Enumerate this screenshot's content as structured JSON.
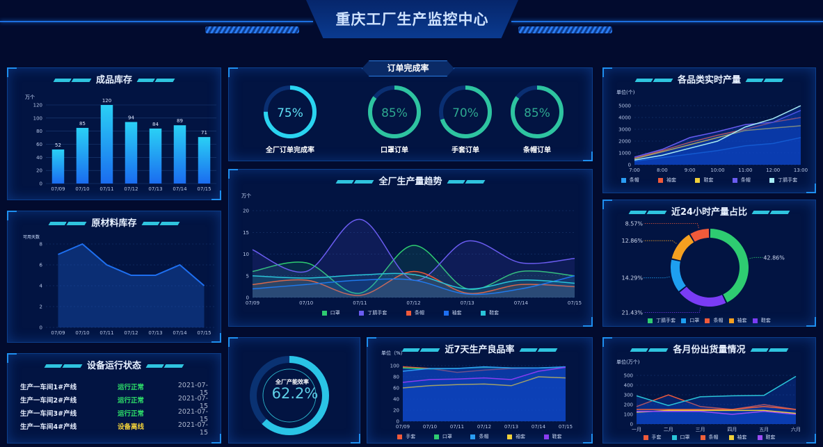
{
  "header": {
    "title": "重庆工厂生产监控中心"
  },
  "colors": {
    "accent": "#34d8f0",
    "ok": "#2ee06a",
    "warn": "#f0d03a",
    "bar": "#1e8ff0"
  },
  "finished_inventory": {
    "title": "成品库存",
    "unit": "万个",
    "chart_data": {
      "type": "bar",
      "categories": [
        "07/09",
        "07/10",
        "07/11",
        "07/12",
        "07/13",
        "07/14",
        "07/15"
      ],
      "values": [
        52,
        85,
        120,
        94,
        84,
        89,
        71
      ],
      "ylim": [
        0,
        120
      ],
      "yticks": [
        "0",
        "20",
        "40",
        "60",
        "80",
        "100",
        "120"
      ],
      "ylabel": "万个"
    }
  },
  "raw_inventory": {
    "title": "原材料库存",
    "unit": "可用天数",
    "chart_data": {
      "type": "area",
      "categories": [
        "07/09",
        "07/10",
        "07/11",
        "07/12",
        "07/13",
        "07/14",
        "07/15"
      ],
      "series": [
        {
          "values": [
            7,
            8,
            6,
            5,
            5,
            6,
            4
          ],
          "color": "#1e6ff0"
        }
      ],
      "ylim": [
        0,
        8
      ],
      "yticks": [
        "0",
        "2",
        "4",
        "6",
        "8"
      ],
      "ylabel": "可用天数"
    }
  },
  "equipment": {
    "title": "设备运行状态",
    "rows": [
      {
        "name": "生产一车间1#产线",
        "status": "运行正常",
        "state": "ok",
        "date": "2021-07-15"
      },
      {
        "name": "生产一车间2#产线",
        "status": "运行正常",
        "state": "ok",
        "date": "2021-07-15"
      },
      {
        "name": "生产一车间3#产线",
        "status": "运行正常",
        "state": "ok",
        "date": "2021-07-15"
      },
      {
        "name": "生产一车间4#产线",
        "status": "设备离线",
        "state": "warn",
        "date": "2021-07-15"
      }
    ]
  },
  "orders": {
    "title": "订单完成率",
    "gauges": [
      {
        "label": "全厂订单完成率",
        "value": 75,
        "text": "75%",
        "color": "#2ad4f0"
      },
      {
        "label": "口罩订单",
        "value": 85,
        "text": "85%",
        "color": "#2ec4a0"
      },
      {
        "label": "手套订单",
        "value": 70,
        "text": "70%",
        "color": "#2ec4a0"
      },
      {
        "label": "条帽订单",
        "value": 85,
        "text": "85%",
        "color": "#2ec4a0"
      }
    ]
  },
  "trend": {
    "title": "全厂生产量趋势",
    "unit": "万个",
    "chart_data": {
      "type": "line",
      "smooth": true,
      "categories": [
        "07/09",
        "07/10",
        "07/11",
        "07/12",
        "07/13",
        "07/14",
        "07/15"
      ],
      "ylim": [
        0,
        20
      ],
      "yticks": [
        "0",
        "5",
        "10",
        "15",
        "20"
      ],
      "ylabel": "万个",
      "legend": "bottom",
      "series": [
        {
          "name": "口罩",
          "color": "#2ecc71",
          "values": [
            6,
            8,
            1,
            12,
            2,
            6,
            5
          ]
        },
        {
          "name": "丁腈手套",
          "color": "#6a5cf0",
          "values": [
            11,
            6,
            18,
            4,
            13,
            8,
            9
          ]
        },
        {
          "name": "条帽",
          "color": "#f05a3a",
          "values": [
            3,
            4,
            0.5,
            6,
            1,
            3,
            2.5
          ]
        },
        {
          "name": "袖套",
          "color": "#1e6ff0",
          "values": [
            2,
            3,
            4,
            4,
            0.8,
            2,
            5
          ]
        },
        {
          "name": "鞋套",
          "color": "#2ac4d8",
          "values": [
            5,
            4.5,
            5.2,
            5.3,
            2,
            4,
            3.3
          ]
        }
      ]
    }
  },
  "efficiency": {
    "label": "全厂产能效率",
    "value": 62.2,
    "text": "62.2%"
  },
  "quality": {
    "title": "近7天生产良品率",
    "unit": "单位（%）",
    "chart_data": {
      "type": "line",
      "categories": [
        "07/09",
        "07/10",
        "07/11",
        "07/12",
        "07/13",
        "07/14",
        "07/15"
      ],
      "ylim": [
        0,
        100
      ],
      "yticks": [
        "0",
        "20",
        "40",
        "60",
        "80",
        "100"
      ],
      "ylabel": "单位（%）",
      "legend": "bottom",
      "series": [
        {
          "name": "手套",
          "color": "#f05a3a",
          "values": [
            98,
            95,
            88,
            92,
            95,
            96,
            97
          ]
        },
        {
          "name": "口罩",
          "color": "#2ecc71",
          "values": [
            96,
            94,
            95,
            97,
            96,
            96,
            97
          ]
        },
        {
          "name": "条帽",
          "color": "#2a9df4",
          "values": [
            90,
            95,
            95,
            98,
            96,
            96,
            98
          ]
        },
        {
          "name": "袖套",
          "color": "#f0d03a",
          "values": [
            60,
            64,
            66,
            67,
            64,
            80,
            78
          ]
        },
        {
          "name": "鞋套",
          "color": "#8a3cf0",
          "values": [
            70,
            75,
            76,
            78,
            75,
            90,
            97
          ]
        }
      ]
    }
  },
  "realtime": {
    "title": "各品类实时产量",
    "unit": "单位(个)",
    "chart_data": {
      "type": "line",
      "categories": [
        "7:00",
        "8:00",
        "9:00",
        "10:00",
        "11:00",
        "12:00",
        "13:00"
      ],
      "ylim": [
        0,
        5000
      ],
      "yticks": [
        "0",
        "1000",
        "2000",
        "3000",
        "4000",
        "5000"
      ],
      "ylabel": "单位(个)",
      "legend": "bottom",
      "series": [
        {
          "name": "条帽",
          "color": "#2a9df4",
          "values": [
            300,
            600,
            900,
            1200,
            1600,
            1800,
            2300
          ]
        },
        {
          "name": "袖套",
          "color": "#f05a3a",
          "values": [
            550,
            1200,
            1900,
            2500,
            3000,
            3600,
            4000
          ]
        },
        {
          "name": "鞋套",
          "color": "#f0d03a",
          "values": [
            500,
            1100,
            1700,
            2300,
            2900,
            3100,
            3300
          ]
        },
        {
          "name": "条帽",
          "color": "#6a5cf0",
          "values": [
            650,
            1300,
            2300,
            2800,
            3400,
            3600,
            4600
          ]
        },
        {
          "name": "丁腈手套",
          "color": "#a8ecf5",
          "values": [
            400,
            800,
            1400,
            2000,
            3200,
            3900,
            5000
          ]
        }
      ]
    }
  },
  "share24h": {
    "title": "近24小时产量占比",
    "chart_data": {
      "type": "pie",
      "legend": "bottom",
      "slices": [
        {
          "name": "丁腈手套",
          "value": 42.86,
          "label": "42.86%",
          "color": "#2ecc71"
        },
        {
          "name": "鞋套",
          "value": 21.43,
          "label": "21.43%",
          "color": "#7a3cf5"
        },
        {
          "name": "口罩",
          "value": 14.29,
          "label": "14.29%",
          "color": "#1e9ff0"
        },
        {
          "name": "袖套",
          "value": 12.86,
          "label": "12.86%",
          "color": "#f5a020"
        },
        {
          "name": "条帽",
          "value": 8.57,
          "label": "8.57%",
          "color": "#f05a3a"
        }
      ],
      "legend_order": [
        0,
        2,
        4,
        3,
        1
      ]
    }
  },
  "monthly": {
    "title": "各月份出货量情况",
    "unit": "单位(万个)",
    "chart_data": {
      "type": "line",
      "categories": [
        "一月",
        "二月",
        "三月",
        "四月",
        "五月",
        "六月"
      ],
      "ylim": [
        0,
        500
      ],
      "yticks": [
        "0",
        "100",
        "200",
        "300",
        "400",
        "500"
      ],
      "ylabel": "单位(万个)",
      "legend": "bottom",
      "series": [
        {
          "name": "手套",
          "color": "#f05a3a",
          "values": [
            180,
            300,
            180,
            150,
            200,
            150
          ]
        },
        {
          "name": "口罩",
          "color": "#2ac4d8",
          "values": [
            290,
            190,
            280,
            290,
            295,
            490
          ]
        },
        {
          "name": "条帽",
          "color": "#f0603a",
          "values": [
            150,
            150,
            150,
            150,
            180,
            150
          ]
        },
        {
          "name": "袖套",
          "color": "#f0d03a",
          "values": [
            120,
            140,
            140,
            140,
            140,
            110
          ]
        },
        {
          "name": "鞋套",
          "color": "#9a4cf5",
          "values": [
            130,
            130,
            130,
            100,
            130,
            100
          ]
        }
      ]
    }
  }
}
